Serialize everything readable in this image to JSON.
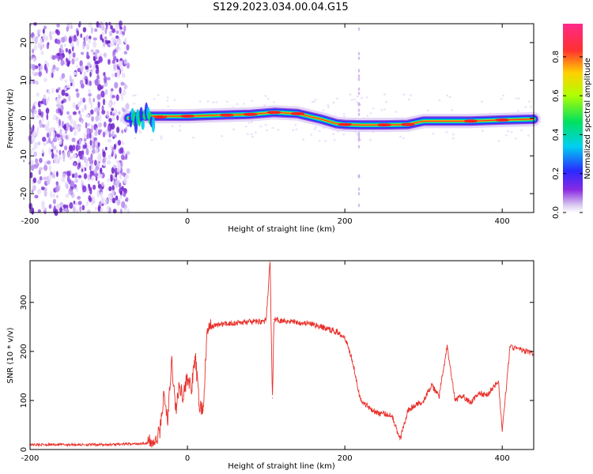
{
  "title": "S129.2023.034.00.04.G15",
  "spectrogram": {
    "xlabel": "Height of straight line (km)",
    "ylabel": "Frequency (Hz)",
    "xlim": [
      -200,
      440
    ],
    "ylim": [
      -25,
      25
    ],
    "xticks": [
      "-200",
      "0",
      "200",
      "400"
    ],
    "yticks": [
      "-20",
      "-10",
      "0",
      "10",
      "20"
    ],
    "noise_region_km": [
      -200,
      -75
    ],
    "ridge_km": [
      -75,
      -60,
      -40,
      -20,
      0,
      40,
      80,
      110,
      140,
      170,
      190,
      200,
      220,
      250,
      280,
      300,
      330,
      360,
      400,
      440
    ],
    "ridge_hz": [
      0,
      0.5,
      0.5,
      0.5,
      0.5,
      0.8,
      1.0,
      1.5,
      1.2,
      -0.3,
      -1.5,
      -1.7,
      -1.8,
      -1.8,
      -1.7,
      -0.8,
      -0.8,
      -0.8,
      -0.5,
      -0.3
    ]
  },
  "colorbar": {
    "label": "Normalized spectral amplitude",
    "ticks": [
      "0.0",
      "0.2",
      "0.4",
      "0.6",
      "0.8"
    ],
    "tick_values": [
      0.0,
      0.2,
      0.4,
      0.6,
      0.8
    ],
    "range": [
      0,
      0.97
    ]
  },
  "chart_data": {
    "type": "line",
    "title": "S129.2023.034.00.04.G15",
    "xlabel": "Height of straight line (km)",
    "ylabel": "SNR (10 * v/v)",
    "xlim": [
      -200,
      440
    ],
    "ylim": [
      0,
      385
    ],
    "xticks": [
      "-200",
      "0",
      "200",
      "400"
    ],
    "yticks": [
      "0",
      "100",
      "200",
      "300"
    ],
    "color": "#e8302a",
    "x": [
      -200,
      -150,
      -100,
      -60,
      -40,
      -35,
      -30,
      -25,
      -20,
      -15,
      -10,
      -5,
      0,
      5,
      10,
      15,
      20,
      25,
      30,
      40,
      60,
      80,
      100,
      105,
      108,
      110,
      130,
      160,
      190,
      200,
      210,
      220,
      240,
      260,
      270,
      280,
      300,
      310,
      320,
      325,
      330,
      340,
      350,
      360,
      370,
      380,
      390,
      395,
      400,
      410,
      440
    ],
    "y": [
      10,
      10,
      10,
      12,
      15,
      40,
      110,
      60,
      180,
      80,
      130,
      110,
      150,
      120,
      190,
      90,
      80,
      240,
      250,
      255,
      258,
      260,
      262,
      385,
      105,
      265,
      262,
      255,
      240,
      230,
      180,
      100,
      75,
      70,
      20,
      80,
      100,
      130,
      110,
      160,
      210,
      100,
      110,
      95,
      115,
      110,
      130,
      140,
      40,
      210,
      195
    ]
  }
}
